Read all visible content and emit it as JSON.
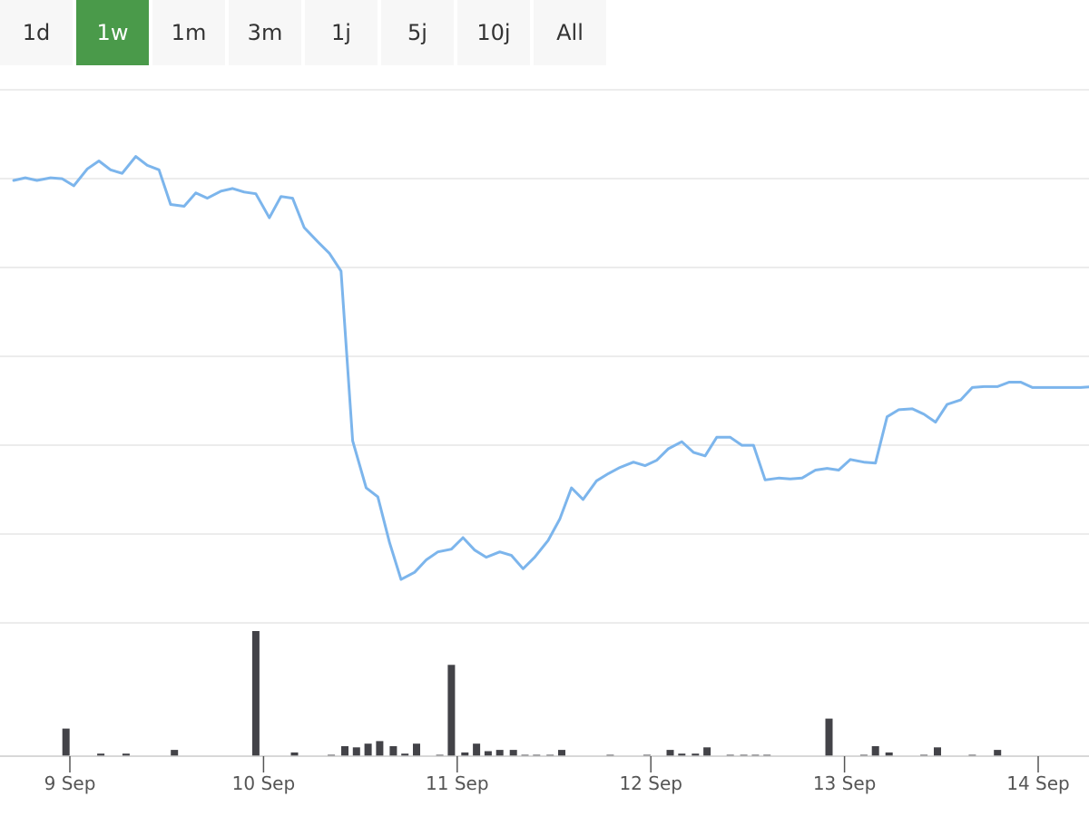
{
  "range_selector": {
    "buttons": [
      {
        "label": "1d",
        "active": false
      },
      {
        "label": "1w",
        "active": true
      },
      {
        "label": "1m",
        "active": false
      },
      {
        "label": "3m",
        "active": false
      },
      {
        "label": "1j",
        "active": false
      },
      {
        "label": "5j",
        "active": false
      },
      {
        "label": "10j",
        "active": false
      },
      {
        "label": "All",
        "active": false
      }
    ],
    "active_color": "#4a9a4a"
  },
  "chart_data": [
    {
      "type": "line",
      "grid": true,
      "line_color": "#7cb5ec",
      "x_tick_labels": [
        "9 Sep",
        "10 Sep",
        "11 Sep",
        "12 Sep",
        "13 Sep",
        "14 Sep"
      ],
      "x_range_days": [
        -0.29,
        5.29
      ],
      "series": [
        {
          "x": [
            -0.29,
            -0.23,
            -0.17,
            -0.1,
            -0.04,
            0.02,
            0.09,
            0.15,
            0.21,
            0.27,
            0.34,
            0.4,
            0.46,
            0.52,
            0.59,
            0.65,
            0.71,
            0.78,
            0.84,
            0.9,
            0.96,
            1.03,
            1.09,
            1.15,
            1.21,
            1.28,
            1.34,
            1.4,
            1.46,
            1.53,
            1.59,
            1.65,
            1.71,
            1.78,
            1.84,
            1.9,
            1.97,
            2.03,
            2.09,
            2.15,
            2.22,
            2.28,
            2.34,
            2.4,
            2.47,
            2.53,
            2.59,
            2.65,
            2.72,
            2.78,
            2.84,
            2.91,
            2.97,
            3.03,
            3.09,
            3.16,
            3.22,
            3.28,
            3.34,
            3.41,
            3.47,
            3.53,
            3.59,
            3.66,
            3.72,
            3.78,
            3.85,
            3.91,
            3.97,
            4.03,
            4.1,
            4.16,
            4.22,
            4.28,
            4.35,
            4.41,
            4.47,
            4.53,
            4.6,
            4.66,
            4.72,
            4.79,
            4.85,
            4.91,
            4.97,
            5.04,
            5.1,
            5.16,
            5.22,
            5.29
          ],
          "values": [
            1.02,
            1.05,
            1.02,
            1.05,
            1.04,
            0.96,
            1.15,
            1.24,
            1.14,
            1.1,
            1.29,
            1.19,
            1.14,
            0.75,
            0.73,
            0.88,
            0.82,
            0.9,
            0.93,
            0.89,
            0.87,
            0.6,
            0.84,
            0.82,
            0.49,
            0.33,
            0.2,
            0.0,
            -1.91,
            -2.44,
            -2.54,
            -3.05,
            -3.47,
            -3.39,
            -3.25,
            -3.16,
            -3.13,
            -3.0,
            -3.14,
            -3.22,
            -3.16,
            -3.2,
            -3.35,
            -3.22,
            -3.03,
            -2.79,
            -2.44,
            -2.57,
            -2.36,
            -2.28,
            -2.21,
            -2.15,
            -2.19,
            -2.13,
            -2.0,
            -1.92,
            -2.04,
            -2.08,
            -1.87,
            -1.87,
            -1.96,
            -1.96,
            -2.35,
            -2.33,
            -2.34,
            -2.33,
            -2.24,
            -2.22,
            -2.24,
            -2.12,
            -2.15,
            -2.16,
            -1.64,
            -1.56,
            -1.55,
            -1.61,
            -1.7,
            -1.5,
            -1.45,
            -1.31,
            -1.3,
            -1.3,
            -1.25,
            -1.25,
            -1.31,
            -1.31,
            -1.31,
            -1.31,
            -1.31,
            -1.3
          ]
        }
      ]
    },
    {
      "type": "bar",
      "series": [
        {
          "x": [
            -0.02,
            0.16,
            0.29,
            0.54,
            0.96,
            1.16,
            1.35,
            1.42,
            1.48,
            1.54,
            1.6,
            1.67,
            1.73,
            1.79,
            1.91,
            1.97,
            2.04,
            2.1,
            2.16,
            2.22,
            2.29,
            2.35,
            2.41,
            2.48,
            2.54,
            2.79,
            2.98,
            3.1,
            3.16,
            3.23,
            3.29,
            3.41,
            3.48,
            3.54,
            3.6,
            3.92,
            4.1,
            4.16,
            4.23,
            4.41,
            4.48,
            4.66,
            4.79
          ],
          "values": [
            22,
            2,
            2,
            5,
            100,
            3,
            1,
            8,
            7,
            10,
            12,
            8,
            2,
            10,
            1,
            73,
            3,
            10,
            4,
            5,
            5,
            1,
            1,
            1,
            5,
            1,
            1,
            5,
            2,
            2,
            7,
            1,
            1,
            1,
            1,
            30,
            1,
            8,
            3,
            1,
            7,
            1,
            5
          ]
        }
      ]
    }
  ]
}
